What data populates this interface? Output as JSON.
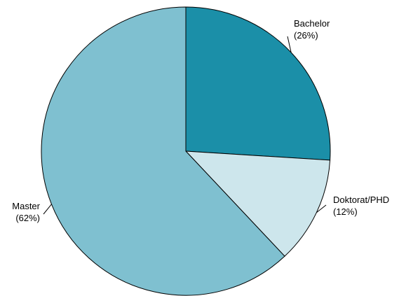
{
  "chart_data": {
    "type": "pie",
    "title": "",
    "legend": "none",
    "slices": [
      {
        "label": "Bachelor",
        "pct_label": "(26%)",
        "value": 26,
        "color": "#1b8fa8"
      },
      {
        "label": "Doktorat/PHD",
        "pct_label": "(12%)",
        "value": 12,
        "color": "#cde6ec"
      },
      {
        "label": "Master",
        "pct_label": "(62%)",
        "value": 62,
        "color": "#7fc0d0"
      }
    ],
    "start_angle_deg": 90,
    "direction": "clockwise",
    "slice_border": "black"
  }
}
